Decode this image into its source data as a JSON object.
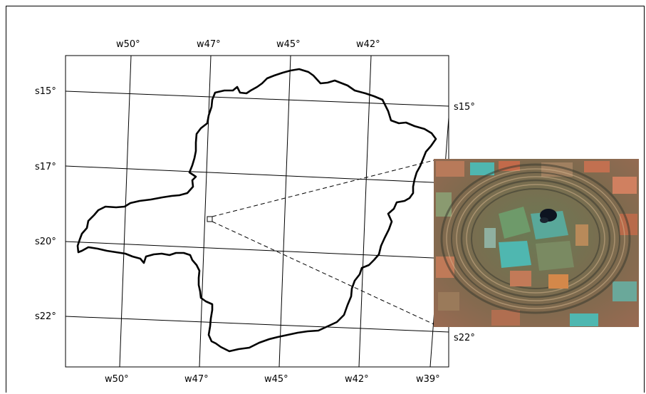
{
  "map": {
    "top_lon_labels": [
      "w50°",
      "w47°",
      "w45°",
      "w42°"
    ],
    "bottom_lon_labels": [
      "w50°",
      "w47°",
      "w45°",
      "w42°",
      "w39°"
    ],
    "left_lat_labels": [
      "s15°",
      "s17°",
      "s20°",
      "s22°"
    ],
    "right_lat_labels": [
      "s15°",
      "s22°"
    ]
  },
  "inset": {
    "image": "satellite-image-circular-crater-structure",
    "colors": {
      "soil": "#b06e50",
      "crop": "#4fb7b0",
      "vegetation": "#6e9a6a",
      "dark_lake": "#0d1320"
    }
  }
}
